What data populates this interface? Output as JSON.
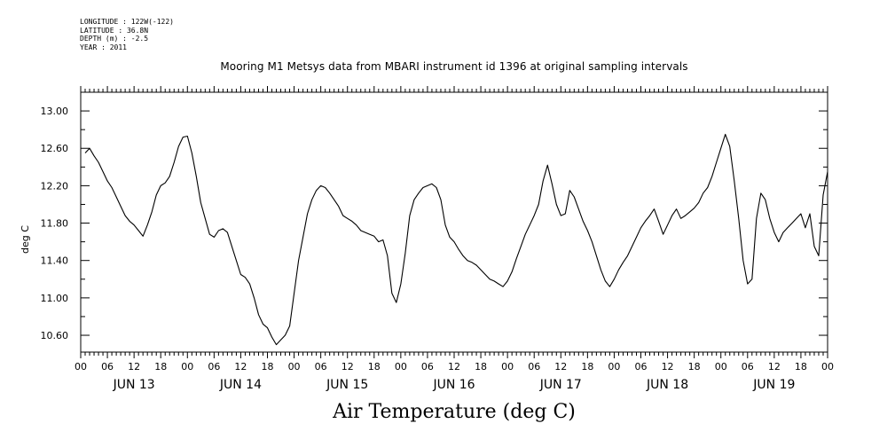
{
  "header": {
    "longitude": "LONGITUDE : 122W(-122)",
    "latitude": "LATITUDE : 36.8N",
    "depth": "DEPTH (m) : -2.5",
    "year": "YEAR : 2011"
  },
  "chart_data": {
    "type": "line",
    "title": "Mooring M1 Metsys data from MBARI instrument id 1396 at original sampling intervals",
    "caption": "Air Temperature (deg C)",
    "ylabel": "deg C",
    "ylim": [
      10.42,
      13.2
    ],
    "yticks": [
      "13.00",
      "12.60",
      "12.20",
      "11.80",
      "11.40",
      "11.00",
      "10.60"
    ],
    "xlim_hours": [
      0,
      168
    ],
    "x_hour_ticks": [
      "00",
      "06",
      "12",
      "18",
      "00",
      "06",
      "12",
      "18",
      "00",
      "06",
      "12",
      "18",
      "00",
      "06",
      "12",
      "18",
      "00",
      "06",
      "12",
      "18",
      "00",
      "06",
      "12",
      "18",
      "00",
      "06",
      "12",
      "18",
      "00"
    ],
    "day_labels": [
      "JUN 13",
      "JUN 14",
      "JUN 15",
      "JUN 16",
      "JUN 17",
      "JUN 18",
      "JUN 19"
    ],
    "series": [
      {
        "color": "#000000",
        "points": [
          [
            1,
            12.55
          ],
          [
            2,
            12.6
          ],
          [
            3,
            12.52
          ],
          [
            4,
            12.45
          ],
          [
            5,
            12.35
          ],
          [
            6,
            12.25
          ],
          [
            7,
            12.18
          ],
          [
            8,
            12.08
          ],
          [
            9,
            11.98
          ],
          [
            10,
            11.88
          ],
          [
            11,
            11.82
          ],
          [
            12,
            11.78
          ],
          [
            13,
            11.72
          ],
          [
            14,
            11.66
          ],
          [
            15,
            11.78
          ],
          [
            16,
            11.92
          ],
          [
            17,
            12.1
          ],
          [
            18,
            12.2
          ],
          [
            19,
            12.23
          ],
          [
            20,
            12.3
          ],
          [
            21,
            12.45
          ],
          [
            22,
            12.62
          ],
          [
            23,
            12.72
          ],
          [
            24,
            12.73
          ],
          [
            25,
            12.55
          ],
          [
            26,
            12.3
          ],
          [
            27,
            12.02
          ],
          [
            28,
            11.85
          ],
          [
            29,
            11.68
          ],
          [
            30,
            11.65
          ],
          [
            31,
            11.72
          ],
          [
            32,
            11.74
          ],
          [
            33,
            11.7
          ],
          [
            34,
            11.55
          ],
          [
            35,
            11.4
          ],
          [
            36,
            11.25
          ],
          [
            37,
            11.22
          ],
          [
            38,
            11.15
          ],
          [
            39,
            11.0
          ],
          [
            40,
            10.82
          ],
          [
            41,
            10.72
          ],
          [
            42,
            10.68
          ],
          [
            43,
            10.58
          ],
          [
            44,
            10.5
          ],
          [
            45,
            10.55
          ],
          [
            46,
            10.6
          ],
          [
            47,
            10.7
          ],
          [
            48,
            11.05
          ],
          [
            49,
            11.4
          ],
          [
            50,
            11.65
          ],
          [
            51,
            11.9
          ],
          [
            52,
            12.05
          ],
          [
            53,
            12.15
          ],
          [
            54,
            12.2
          ],
          [
            55,
            12.18
          ],
          [
            56,
            12.12
          ],
          [
            57,
            12.05
          ],
          [
            58,
            11.98
          ],
          [
            59,
            11.88
          ],
          [
            60,
            11.85
          ],
          [
            61,
            11.82
          ],
          [
            62,
            11.78
          ],
          [
            63,
            11.72
          ],
          [
            64,
            11.7
          ],
          [
            65,
            11.68
          ],
          [
            66,
            11.66
          ],
          [
            67,
            11.6
          ],
          [
            68,
            11.62
          ],
          [
            69,
            11.45
          ],
          [
            70,
            11.05
          ],
          [
            71,
            10.95
          ],
          [
            72,
            11.15
          ],
          [
            73,
            11.48
          ],
          [
            74,
            11.88
          ],
          [
            75,
            12.05
          ],
          [
            76,
            12.12
          ],
          [
            77,
            12.18
          ],
          [
            78,
            12.2
          ],
          [
            79,
            12.22
          ],
          [
            80,
            12.18
          ],
          [
            81,
            12.05
          ],
          [
            82,
            11.78
          ],
          [
            83,
            11.65
          ],
          [
            84,
            11.6
          ],
          [
            85,
            11.52
          ],
          [
            86,
            11.45
          ],
          [
            87,
            11.4
          ],
          [
            88,
            11.38
          ],
          [
            89,
            11.35
          ],
          [
            90,
            11.3
          ],
          [
            91,
            11.25
          ],
          [
            92,
            11.2
          ],
          [
            93,
            11.18
          ],
          [
            94,
            11.15
          ],
          [
            95,
            11.12
          ],
          [
            96,
            11.18
          ],
          [
            97,
            11.28
          ],
          [
            98,
            11.42
          ],
          [
            99,
            11.55
          ],
          [
            100,
            11.68
          ],
          [
            101,
            11.78
          ],
          [
            102,
            11.88
          ],
          [
            103,
            12.0
          ],
          [
            104,
            12.25
          ],
          [
            105,
            12.42
          ],
          [
            106,
            12.22
          ],
          [
            107,
            12.0
          ],
          [
            108,
            11.88
          ],
          [
            109,
            11.9
          ],
          [
            110,
            12.15
          ],
          [
            111,
            12.08
          ],
          [
            112,
            11.95
          ],
          [
            113,
            11.82
          ],
          [
            114,
            11.72
          ],
          [
            115,
            11.6
          ],
          [
            116,
            11.45
          ],
          [
            117,
            11.3
          ],
          [
            118,
            11.18
          ],
          [
            119,
            11.12
          ],
          [
            120,
            11.2
          ],
          [
            121,
            11.3
          ],
          [
            122,
            11.38
          ],
          [
            123,
            11.45
          ],
          [
            124,
            11.55
          ],
          [
            125,
            11.65
          ],
          [
            126,
            11.75
          ],
          [
            127,
            11.82
          ],
          [
            128,
            11.88
          ],
          [
            129,
            11.95
          ],
          [
            130,
            11.82
          ],
          [
            131,
            11.68
          ],
          [
            132,
            11.78
          ],
          [
            133,
            11.88
          ],
          [
            134,
            11.95
          ],
          [
            135,
            11.85
          ],
          [
            136,
            11.88
          ],
          [
            137,
            11.92
          ],
          [
            138,
            11.96
          ],
          [
            139,
            12.02
          ],
          [
            140,
            12.12
          ],
          [
            141,
            12.18
          ],
          [
            142,
            12.3
          ],
          [
            143,
            12.45
          ],
          [
            144,
            12.6
          ],
          [
            145,
            12.75
          ],
          [
            146,
            12.62
          ],
          [
            147,
            12.25
          ],
          [
            148,
            11.85
          ],
          [
            149,
            11.4
          ],
          [
            150,
            11.15
          ],
          [
            151,
            11.2
          ],
          [
            152,
            11.85
          ],
          [
            153,
            12.12
          ],
          [
            154,
            12.05
          ],
          [
            155,
            11.85
          ],
          [
            156,
            11.7
          ],
          [
            157,
            11.6
          ],
          [
            158,
            11.7
          ],
          [
            159,
            11.75
          ],
          [
            160,
            11.8
          ],
          [
            161,
            11.85
          ],
          [
            162,
            11.9
          ],
          [
            163,
            11.75
          ],
          [
            164,
            11.9
          ],
          [
            165,
            11.55
          ],
          [
            166,
            11.45
          ],
          [
            167,
            12.1
          ],
          [
            168,
            12.35
          ]
        ]
      }
    ]
  }
}
